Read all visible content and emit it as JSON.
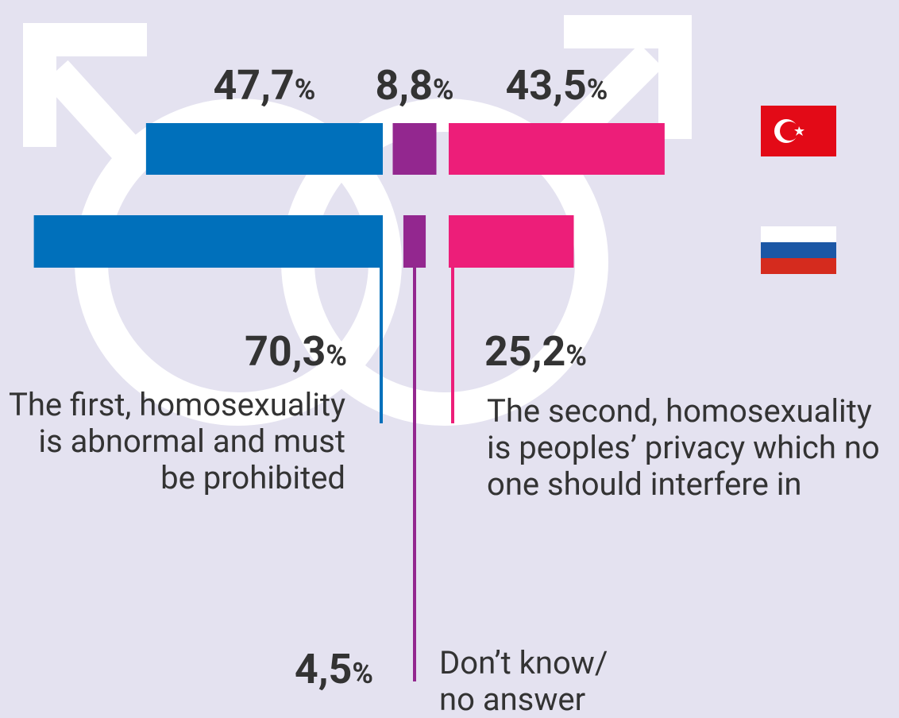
{
  "chart_data": {
    "type": "bar",
    "categories": [
      null,
      null
    ],
    "series": [
      {
        "name": "The first, homosexuality is abnormal and must be prohibited",
        "color": "#0070bb",
        "values": [
          47.7,
          70.3
        ],
        "value_labels": [
          "47,7%",
          "70,3%"
        ]
      },
      {
        "name": "Don’t know/ no answer",
        "color": "#93278f",
        "values": [
          8.8,
          4.5
        ],
        "value_labels": [
          "8,8%",
          "4,5%"
        ]
      },
      {
        "name": "The second, homosexuality is peoples’ privacy which no one should interfere in",
        "color": "#ed1e79",
        "values": [
          43.5,
          25.2
        ],
        "value_labels": [
          "43,5%",
          "25,2%"
        ]
      }
    ]
  }
}
